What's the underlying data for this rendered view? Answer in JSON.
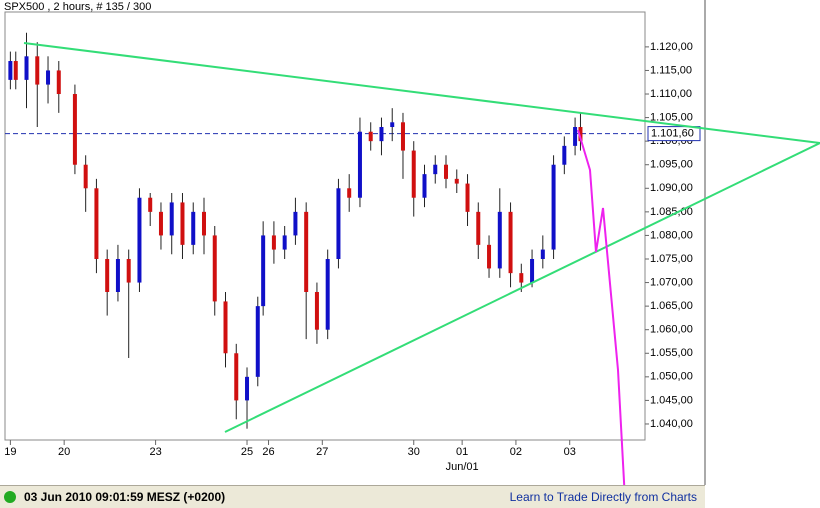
{
  "chart_data": {
    "type": "candlestick",
    "title": "SPX500 , 2 hours, # 135 / 300",
    "x": [
      1,
      2,
      4,
      6,
      8,
      10,
      13,
      15,
      17,
      19,
      21,
      23,
      25,
      27,
      29,
      31,
      33,
      35,
      37,
      39,
      41,
      43,
      45,
      47,
      48,
      50,
      52,
      54,
      56,
      58,
      60,
      62,
      64,
      66,
      68,
      70,
      72,
      74,
      76,
      78,
      80,
      82,
      84,
      86,
      88,
      90,
      92,
      94,
      96,
      98,
      100,
      102,
      104,
      106,
      107
    ],
    "open": [
      1.113,
      1.117,
      1.113,
      1.118,
      1.112,
      1.115,
      1.11,
      1.095,
      1.09,
      1.075,
      1.068,
      1.075,
      1.07,
      1.088,
      1.085,
      1.08,
      1.087,
      1.078,
      1.085,
      1.08,
      1.066,
      1.055,
      1.045,
      1.05,
      1.065,
      1.08,
      1.077,
      1.08,
      1.085,
      1.068,
      1.06,
      1.075,
      1.09,
      1.088,
      1.102,
      1.1,
      1.103,
      1.104,
      1.098,
      1.088,
      1.093,
      1.095,
      1.092,
      1.091,
      1.085,
      1.078,
      1.073,
      1.085,
      1.072,
      1.07,
      1.075,
      1.077,
      1.095,
      1.099,
      1.103
    ],
    "high": [
      1.119,
      1.119,
      1.123,
      1.121,
      1.118,
      1.117,
      1.112,
      1.097,
      1.092,
      1.077,
      1.078,
      1.077,
      1.09,
      1.089,
      1.087,
      1.089,
      1.089,
      1.087,
      1.088,
      1.082,
      1.068,
      1.057,
      1.052,
      1.067,
      1.083,
      1.083,
      1.082,
      1.088,
      1.087,
      1.07,
      1.077,
      1.092,
      1.093,
      1.105,
      1.104,
      1.105,
      1.107,
      1.106,
      1.1,
      1.095,
      1.097,
      1.097,
      1.094,
      1.093,
      1.087,
      1.08,
      1.09,
      1.087,
      1.074,
      1.077,
      1.08,
      1.097,
      1.101,
      1.105,
      1.106
    ],
    "low": [
      1.111,
      1.111,
      1.107,
      1.103,
      1.108,
      1.106,
      1.093,
      1.085,
      1.072,
      1.063,
      1.066,
      1.054,
      1.068,
      1.082,
      1.077,
      1.076,
      1.075,
      1.076,
      1.076,
      1.063,
      1.052,
      1.041,
      1.039,
      1.048,
      1.063,
      1.074,
      1.075,
      1.078,
      1.058,
      1.057,
      1.058,
      1.073,
      1.085,
      1.086,
      1.098,
      1.097,
      1.1,
      1.092,
      1.084,
      1.086,
      1.091,
      1.09,
      1.089,
      1.082,
      1.075,
      1.071,
      1.071,
      1.069,
      1.068,
      1.069,
      1.073,
      1.075,
      1.093,
      1.097,
      1.098
    ],
    "close": [
      1.117,
      1.113,
      1.118,
      1.112,
      1.115,
      1.11,
      1.095,
      1.09,
      1.075,
      1.068,
      1.075,
      1.07,
      1.088,
      1.085,
      1.08,
      1.087,
      1.078,
      1.085,
      1.08,
      1.066,
      1.055,
      1.045,
      1.05,
      1.065,
      1.08,
      1.077,
      1.08,
      1.085,
      1.068,
      1.06,
      1.075,
      1.09,
      1.088,
      1.102,
      1.1,
      1.103,
      1.104,
      1.098,
      1.088,
      1.093,
      1.095,
      1.092,
      1.091,
      1.085,
      1.078,
      1.073,
      1.085,
      1.072,
      1.07,
      1.075,
      1.077,
      1.095,
      1.099,
      1.103,
      1.1
    ],
    "up_color": "#1010c8",
    "down_color": "#d01010",
    "xlim": [
      0,
      119
    ],
    "xticks": [
      {
        "value": 1,
        "label": "19"
      },
      {
        "value": 11,
        "label": "20"
      },
      {
        "value": 28,
        "label": "23"
      },
      {
        "value": 45,
        "label": "25"
      },
      {
        "value": 49,
        "label": "26"
      },
      {
        "value": 59,
        "label": "27"
      },
      {
        "value": 76,
        "label": "30"
      },
      {
        "value": 85,
        "label": "01"
      },
      {
        "value": 95,
        "label": "02"
      },
      {
        "value": 105,
        "label": "03"
      }
    ],
    "x_annotation": {
      "value": 85,
      "label": "Jun/01"
    },
    "ylim": [
      1.0366,
      1.1274
    ],
    "yticks": [
      {
        "value": 1.04,
        "label": "1.040,00"
      },
      {
        "value": 1.045,
        "label": "1.045,00"
      },
      {
        "value": 1.05,
        "label": "1.050,00"
      },
      {
        "value": 1.055,
        "label": "1.055,00"
      },
      {
        "value": 1.06,
        "label": "1.060,00"
      },
      {
        "value": 1.065,
        "label": "1.065,00"
      },
      {
        "value": 1.07,
        "label": "1.070,00"
      },
      {
        "value": 1.075,
        "label": "1.075,00"
      },
      {
        "value": 1.08,
        "label": "1.080,00"
      },
      {
        "value": 1.085,
        "label": "1.085,00"
      },
      {
        "value": 1.09,
        "label": "1.090,00"
      },
      {
        "value": 1.095,
        "label": "1.095,00"
      },
      {
        "value": 1.1,
        "label": "1.100,00"
      },
      {
        "value": 1.105,
        "label": "1.105,00"
      },
      {
        "value": 1.11,
        "label": "1.110,00"
      },
      {
        "value": 1.115,
        "label": "1.115,00"
      },
      {
        "value": 1.12,
        "label": "1.120,00"
      }
    ],
    "current_price": {
      "value": 1.1016,
      "label": "1.101,60"
    }
  },
  "status": {
    "datetime": "03 Jun 2010 09:01:59  MESZ (+0200)",
    "link": "Learn to Trade Directly from Charts"
  }
}
